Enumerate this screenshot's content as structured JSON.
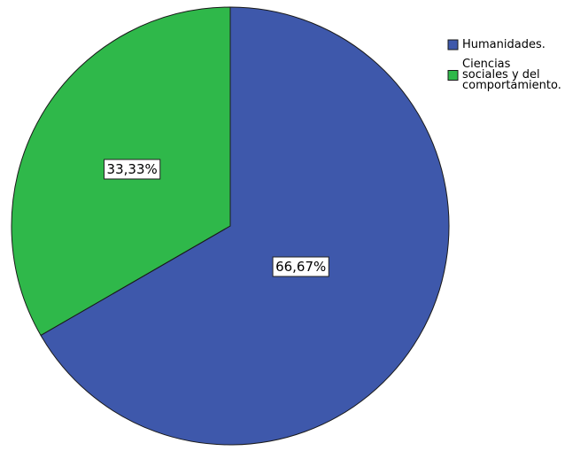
{
  "chart_data": {
    "type": "pie",
    "slices": [
      {
        "label": "Humanidades.",
        "legend_lines": [
          "Humanidades."
        ],
        "value": 66.67,
        "data_label": "66,67%",
        "color": "#3e58ab"
      },
      {
        "label": "Ciencias sociales y del comportamiento.",
        "legend_lines": [
          "Ciencias",
          "sociales y del",
          "comportamiento."
        ],
        "value": 33.33,
        "data_label": "33,33%",
        "color": "#2fb84a"
      }
    ],
    "start_angle": "12 o'clock",
    "direction": "clockwise",
    "legend_position": "top-right"
  }
}
